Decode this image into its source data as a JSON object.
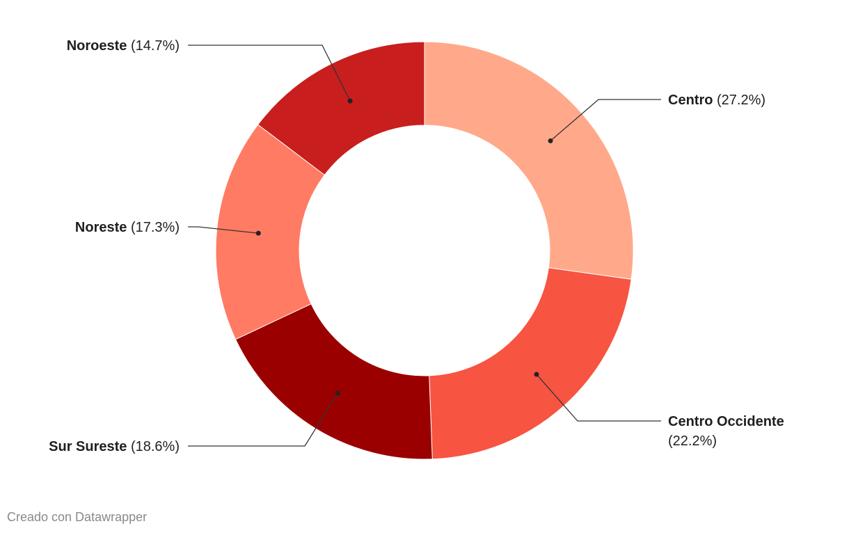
{
  "chart_data": {
    "type": "donut",
    "categories": [
      "Centro",
      "Centro Occidente",
      "Sur Sureste",
      "Noreste",
      "Noroeste"
    ],
    "values": [
      27.2,
      22.2,
      18.6,
      17.3,
      14.7
    ],
    "value_labels": [
      "(27.2%)",
      "(22.2%)",
      "(18.6%)",
      "(17.3%)",
      "(14.7%)"
    ],
    "colors": [
      "#ffa98a",
      "#f75442",
      "#9b0000",
      "#ff7b63",
      "#c81e1e"
    ],
    "source": "Creado con Datawrapper"
  }
}
